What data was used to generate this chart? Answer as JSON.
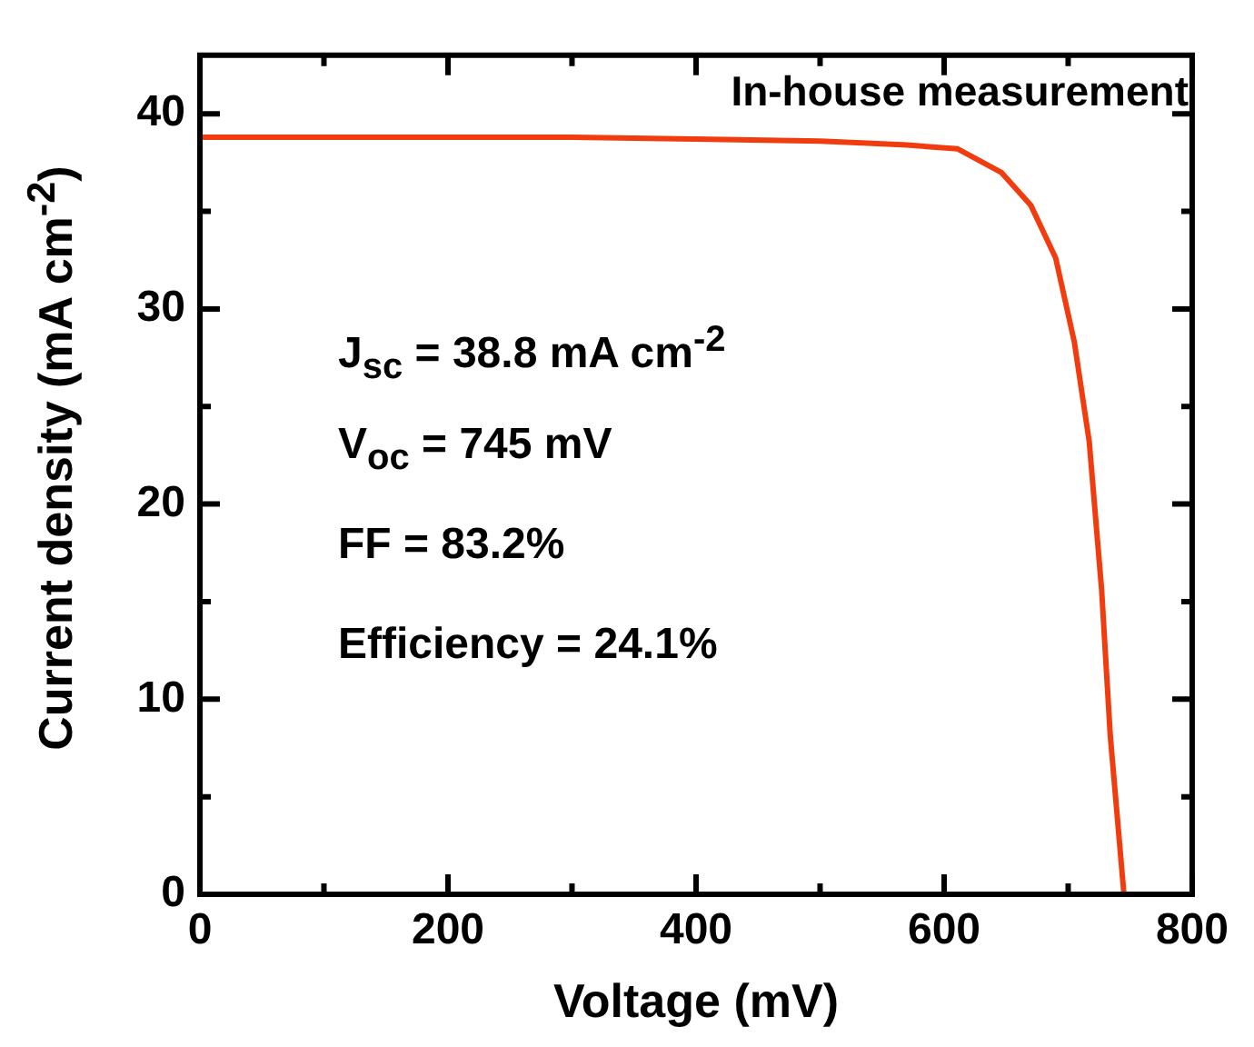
{
  "chart_data": {
    "type": "line",
    "xlabel": "Voltage (mV)",
    "ylabel": "Current density (mA cm$^{-2}$)",
    "x": [
      0,
      100,
      200,
      300,
      400,
      500,
      538,
      570,
      611,
      646,
      670,
      690,
      705,
      717,
      727,
      734,
      745
    ],
    "series": [
      {
        "color": "#f03c0f",
        "values": [
          38.8,
          38.8,
          38.8,
          38.8,
          38.7,
          38.6,
          38.5,
          38.4,
          38.2,
          37.0,
          35.3,
          32.6,
          28.3,
          23.2,
          15.6,
          8.1,
          0
        ]
      }
    ],
    "xlim": [
      0,
      800
    ],
    "xticks": [
      0,
      {
        "value": 100,
        "label": null
      },
      200,
      {
        "value": 300,
        "label": null
      },
      400,
      {
        "value": 500,
        "label": null
      },
      600,
      {
        "value": 700,
        "label": null
      },
      800
    ],
    "ylim": [
      0,
      43
    ],
    "yticks": [
      0,
      {
        "value": 5,
        "label": null
      },
      10,
      {
        "value": 15,
        "label": null
      },
      20,
      {
        "value": 25,
        "label": null
      },
      30,
      {
        "value": 35,
        "label": null
      },
      40
    ],
    "annotations": [
      "In-house measurement",
      "J$_{sc}$ = 38.8 mA cm$^{-2}$",
      "V$_{oc}$ = 745 mV",
      "FF = 83.2%",
      "Efficiency = 24.1%"
    ],
    "grid": false,
    "legend": false,
    "marker": "none",
    "line_style": "solid"
  }
}
